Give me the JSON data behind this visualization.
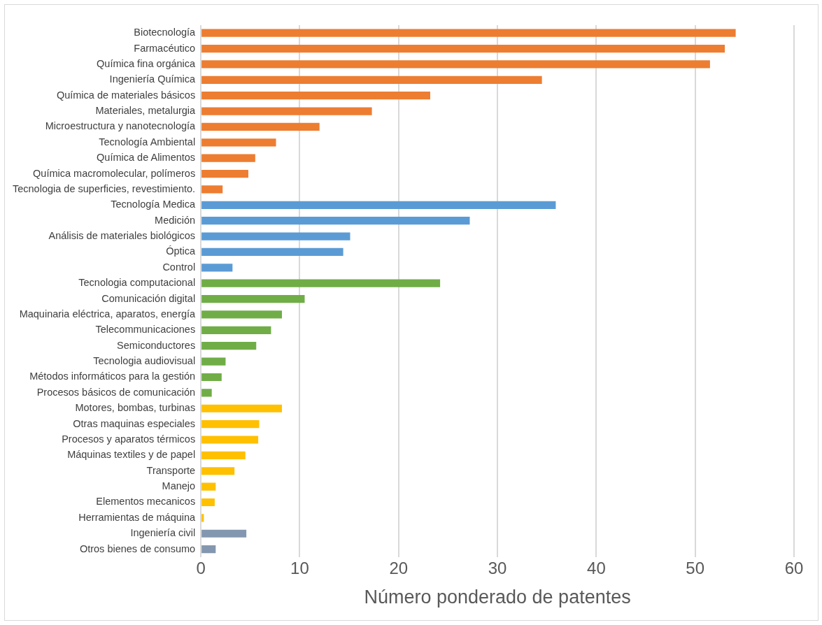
{
  "chart_data": {
    "type": "bar",
    "orientation": "horizontal",
    "xlabel": "Número ponderado de patentes",
    "categories": [
      "Biotecnología",
      "Farmacéutico",
      "Química fina orgánica",
      "Ingeniería Química",
      "Química de materiales básicos",
      "Materiales, metalurgia",
      "Microestructura y nanotecnología",
      "Tecnología Ambiental",
      "Química de Alimentos",
      "Química macromolecular, polímeros",
      "Tecnologia de superficies, revestimiento.",
      "Tecnología Medica",
      "Medición",
      "Análisis de materiales biológicos",
      "Óptica",
      "Control",
      "Tecnologia computacional",
      "Comunicación digital",
      "Maquinaria eléctrica, aparatos, energía",
      "Telecommunicaciones",
      "Semiconductores",
      "Tecnologia audiovisual",
      "Métodos informáticos para la gestión",
      "Procesos básicos de comunicación",
      "Motores, bombas, turbinas",
      "Otras maquinas especiales",
      "Procesos y aparatos térmicos",
      "Máquinas textiles y de papel",
      "Transporte",
      "Manejo",
      "Elementos mecanicos",
      "Herramientas de máquina",
      "Ingeniería civil",
      "Otros bienes de consumo"
    ],
    "values": [
      54.1,
      53.0,
      51.5,
      34.5,
      23.2,
      17.3,
      12.0,
      7.6,
      5.5,
      4.8,
      2.2,
      35.9,
      27.2,
      15.1,
      14.4,
      3.2,
      24.2,
      10.5,
      8.2,
      7.1,
      5.6,
      2.5,
      2.1,
      1.1,
      8.2,
      5.9,
      5.8,
      4.5,
      3.4,
      1.5,
      1.4,
      0.3,
      4.6,
      1.5
    ],
    "colors": [
      "#ed7d31",
      "#ed7d31",
      "#ed7d31",
      "#ed7d31",
      "#ed7d31",
      "#ed7d31",
      "#ed7d31",
      "#ed7d31",
      "#ed7d31",
      "#ed7d31",
      "#ed7d31",
      "#5b9bd5",
      "#5b9bd5",
      "#5b9bd5",
      "#5b9bd5",
      "#5b9bd5",
      "#70ad47",
      "#70ad47",
      "#70ad47",
      "#70ad47",
      "#70ad47",
      "#70ad47",
      "#70ad47",
      "#70ad47",
      "#ffc000",
      "#ffc000",
      "#ffc000",
      "#ffc000",
      "#ffc000",
      "#ffc000",
      "#ffc000",
      "#ffc000",
      "#8497b0",
      "#8497b0"
    ],
    "xlim": [
      0,
      60
    ],
    "xticks": [
      0,
      10,
      20,
      30,
      40,
      50,
      60
    ],
    "grid": "x",
    "legend": false
  }
}
